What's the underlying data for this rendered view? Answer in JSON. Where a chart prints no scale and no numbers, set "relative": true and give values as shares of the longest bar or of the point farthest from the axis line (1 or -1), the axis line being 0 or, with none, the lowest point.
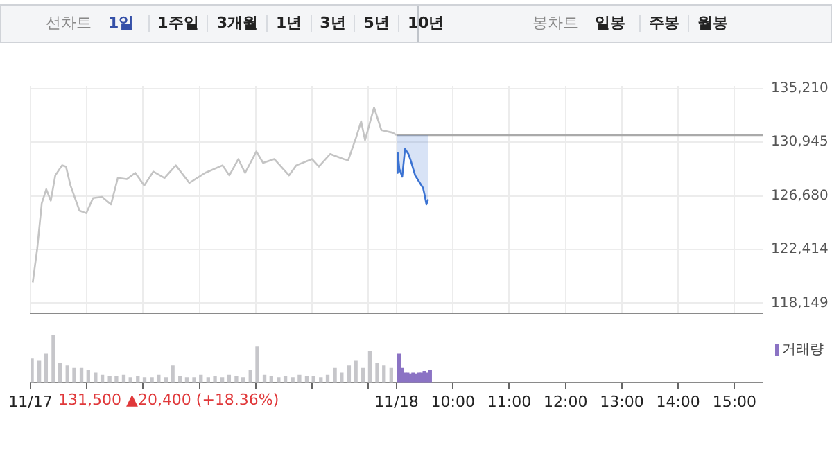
{
  "chart_data": [
    {
      "type": "other",
      "annotations": [
        "선차트",
        "1일",
        "1주일",
        "3개월",
        "1년",
        "3년",
        "5년",
        "10년",
        "봉차트",
        "일봉",
        "주봉",
        "월봉"
      ]
    },
    {
      "type": "line",
      "marker": "none",
      "grid": true,
      "legend": false,
      "tick_labels": "y",
      "xlim": [
        2.5,
        15.5
      ],
      "xticks": [
        {
          "value": 2.5,
          "label": null
        },
        {
          "value": 3.5,
          "label": null
        },
        {
          "value": 4.5,
          "label": null
        },
        {
          "value": 5.5,
          "label": null
        },
        {
          "value": 6.5,
          "label": null
        },
        {
          "value": 7.5,
          "label": null
        },
        {
          "value": 8.5,
          "label": null
        },
        {
          "value": 9,
          "label": null
        },
        {
          "value": 10,
          "label": null
        },
        {
          "value": 11,
          "label": null
        },
        {
          "value": 12,
          "label": null
        },
        {
          "value": 13,
          "label": null
        },
        {
          "value": 14,
          "label": null
        },
        {
          "value": 15,
          "label": null
        }
      ],
      "ylim": [
        117350,
        135410
      ],
      "yticks": [
        {
          "value": 135210,
          "label": "135,210"
        },
        {
          "value": 130945,
          "label": "130,945"
        },
        {
          "value": 126680,
          "label": "126,680"
        },
        {
          "value": 122414,
          "label": "122,414"
        },
        {
          "value": 118149,
          "label": "118,149"
        }
      ],
      "series": [
        {
          "color": "#c4c4c4",
          "x": [
            2.54,
            2.62,
            2.7,
            2.78,
            2.86,
            2.94,
            3.06,
            3.13,
            3.21,
            3.37,
            3.49,
            3.61,
            3.77,
            3.93,
            4.05,
            4.21,
            4.36,
            4.52,
            4.68,
            4.88,
            5.08,
            5.32,
            5.6,
            5.91,
            6.03,
            6.19,
            6.31,
            6.51,
            6.63,
            6.83,
            7.09,
            7.22,
            7.5,
            7.62,
            7.82,
            8.06,
            8.14,
            8.28,
            8.37,
            8.44,
            8.6,
            8.73,
            8.93,
            9
          ],
          "values": [
            119800,
            122500,
            126100,
            127200,
            126300,
            128300,
            129100,
            129000,
            127500,
            125500,
            125300,
            126500,
            126600,
            126000,
            128100,
            128000,
            128500,
            127500,
            128600,
            128100,
            129100,
            127700,
            128500,
            129100,
            128300,
            129600,
            128500,
            130200,
            129300,
            129600,
            128300,
            129100,
            129600,
            129000,
            130000,
            129600,
            129500,
            131300,
            132600,
            131100,
            133700,
            131900,
            131700,
            131500
          ]
        },
        {
          "color": "#3b73d3",
          "x": [
            9,
            9.02,
            9.05,
            9.1,
            9.15,
            9.21,
            9.25,
            9.33,
            9.4,
            9.47,
            9.5,
            9.53,
            9.56
          ],
          "values": [
            128500,
            130100,
            128800,
            128200,
            130400,
            130000,
            129500,
            128300,
            127800,
            127300,
            126700,
            126000,
            126400
          ],
          "lower": [
            128500,
            130100,
            128800,
            128200,
            130400,
            130000,
            129500,
            128300,
            127800,
            127300,
            126700,
            126000,
            126400
          ],
          "upper": [
            131500,
            131500,
            131500,
            131500,
            131500,
            131500,
            131500,
            131500,
            131500,
            131500,
            131500,
            131500,
            131500
          ]
        },
        {
          "color": "#aaaaaa",
          "x": [
            9,
            15.5
          ],
          "values": [
            131500,
            131500
          ]
        }
      ]
    },
    {
      "type": "bar",
      "relative": true,
      "grid": false,
      "legend": "top right",
      "tick_labels": "x",
      "xlim": [
        2.5,
        15.5
      ],
      "xticks": [
        {
          "value": 2.5,
          "label": "11/17"
        },
        {
          "value": 3.5,
          "label": null
        },
        {
          "value": 4.5,
          "label": null
        },
        {
          "value": 5.5,
          "label": null
        },
        {
          "value": 6.5,
          "label": null
        },
        {
          "value": 7.5,
          "label": null
        },
        {
          "value": 8.5,
          "label": null
        },
        {
          "value": 9,
          "label": "11/18"
        },
        {
          "value": 10,
          "label": "10:00"
        },
        {
          "value": 11,
          "label": "11:00"
        },
        {
          "value": 12,
          "label": "12:00"
        },
        {
          "value": 13,
          "label": "13:00"
        },
        {
          "value": 14,
          "label": "14:00"
        },
        {
          "value": 15,
          "label": "15:00"
        }
      ],
      "annotations": [
        "131,500 ▲20,400 (+18.36%)"
      ],
      "series": [
        {
          "color": "#c6c6ca",
          "x": [
            2.55,
            2.68,
            2.8,
            2.93,
            3.05,
            3.18,
            3.3,
            3.43,
            3.55,
            3.68,
            3.8,
            3.93,
            4.05,
            4.18,
            4.3,
            4.43,
            4.55,
            4.68,
            4.8,
            4.93,
            5.05,
            5.18,
            5.3,
            5.43,
            5.55,
            5.68,
            5.8,
            5.93,
            6.05,
            6.18,
            6.3,
            6.43,
            6.55,
            6.68,
            6.8,
            6.93,
            7.05,
            7.18,
            7.3,
            7.43,
            7.55,
            7.68,
            7.8,
            7.93,
            8.05,
            8.18,
            8.3,
            8.43,
            8.55,
            8.68,
            8.8,
            8.93
          ],
          "values": [
            0.5,
            0.45,
            0.6,
            1,
            0.4,
            0.35,
            0.3,
            0.3,
            0.25,
            0.2,
            0.15,
            0.12,
            0.12,
            0.15,
            0.1,
            0.12,
            0.1,
            0.1,
            0.15,
            0.1,
            0.35,
            0.12,
            0.1,
            0.1,
            0.15,
            0.1,
            0.12,
            0.1,
            0.15,
            0.12,
            0.1,
            0.25,
            0.75,
            0.15,
            0.12,
            0.1,
            0.12,
            0.1,
            0.15,
            0.12,
            0.12,
            0.1,
            0.15,
            0.3,
            0.2,
            0.35,
            0.45,
            0.3,
            0.65,
            0.4,
            0.35,
            0.3
          ]
        },
        {
          "name": "거래량",
          "color": "#8b73c4",
          "x": [
            9.02,
            9.07,
            9.12,
            9.17,
            9.22,
            9.27,
            9.32,
            9.37,
            9.42,
            9.47,
            9.52,
            9.57
          ],
          "values": [
            0.6,
            0.3,
            0.2,
            0.2,
            0.18,
            0.2,
            0.18,
            0.2,
            0.2,
            0.22,
            0.2,
            0.25
          ]
        }
      ]
    }
  ]
}
